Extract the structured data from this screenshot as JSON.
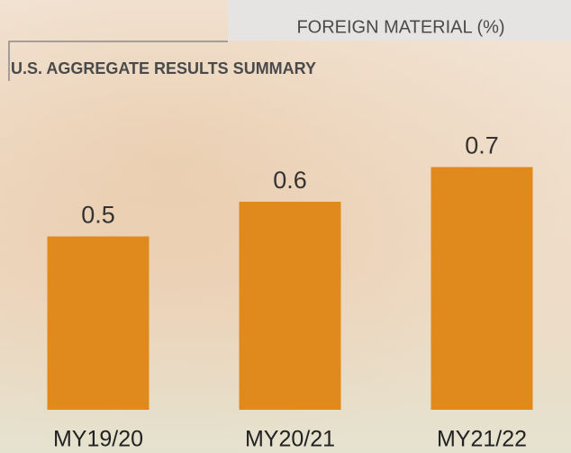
{
  "chart_data": {
    "type": "bar",
    "title": "FOREIGN MATERIAL (%)",
    "subtitle": "U.S. AGGREGATE RESULTS SUMMARY",
    "categories": [
      "MY19/20",
      "MY20/21",
      "MY21/22"
    ],
    "values": [
      0.5,
      0.6,
      0.7
    ],
    "color": "#e08a1e"
  }
}
